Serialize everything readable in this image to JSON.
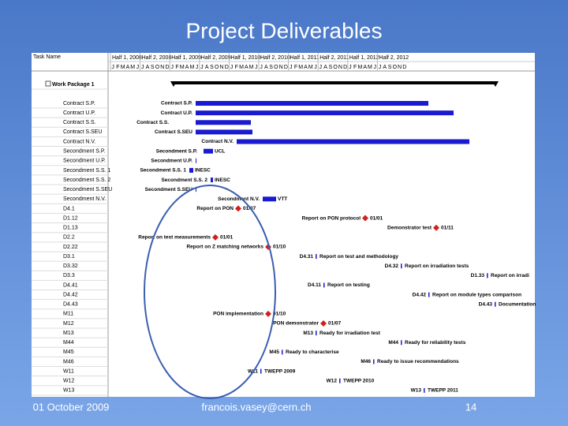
{
  "title": "Project Deliverables",
  "footer": {
    "date": "01 October 2009",
    "email": "francois.vasey@cern.ch",
    "page": "14"
  },
  "table": {
    "header": "Task Name",
    "tasks": [
      "Work Package 1",
      "Contract S.P.",
      "Contract U.P.",
      "Contract S.S.",
      "Contract S.SEU",
      "Contract N.V.",
      "Secondment S.P.",
      "Secondment U.P.",
      "Secondment S.S. 1",
      "Secondment S.S. 2",
      "Secondment S.SEU",
      "Secondment N.V.",
      "D4.1",
      "D1.12",
      "D1.13",
      "D2.2",
      "D2.22",
      "D3.1",
      "D3.32",
      "D3.3",
      "D4.41",
      "D4.42",
      "D4.43",
      "M11",
      "M12",
      "M13",
      "M44",
      "M45",
      "M46",
      "W11",
      "W12",
      "W13"
    ]
  },
  "timeline": {
    "halves": [
      "Half 1, 2008",
      "Half 2, 2008",
      "Half 1, 2009",
      "Half 2, 2009",
      "Half 1, 2010",
      "Half 2, 2010",
      "Half 1, 2011",
      "Half 2, 2011",
      "Half 1, 2012",
      "Half 2, 2012"
    ],
    "months": [
      "J",
      "F",
      "M",
      "A",
      "M",
      "J",
      "J",
      "A",
      "S",
      "O",
      "N",
      "D"
    ]
  },
  "gantt": {
    "bar_notes": [
      "UCL",
      "INESC",
      "INESC",
      "VTT"
    ],
    "milestones": [
      {
        "label": "Report on PON",
        "date": "01/07"
      },
      {
        "label": "Report on PON protocol",
        "date": "01/01"
      },
      {
        "label": "Demonstrator test",
        "date": "01/11"
      },
      {
        "label": "Report on test measurements",
        "date": "01/01"
      },
      {
        "label": "Report on Z matching networks",
        "date": "01/10"
      },
      {
        "code": "D4.31",
        "label": "Report on test and methodology"
      },
      {
        "code": "D4.32",
        "label": "Report on irradiation tests"
      },
      {
        "code": "D1.33",
        "label": "Report on irradi"
      },
      {
        "code": "D4.11",
        "label": "Report on testing"
      },
      {
        "code": "D4.42",
        "label": "Report on module types comparison"
      },
      {
        "code": "D4.43",
        "label": "Documentation"
      },
      {
        "label": "PON implementation",
        "date": "01/10"
      },
      {
        "label": "PON demonstrator",
        "date": "01/07"
      },
      {
        "code": "M13",
        "label": "Ready for irradiation test"
      },
      {
        "code": "M44",
        "label": "Ready for reliability tests"
      },
      {
        "code": "M45",
        "label": "Ready to characterise"
      },
      {
        "code": "M46",
        "label": "Ready to issue recommendations"
      },
      {
        "code": "W11",
        "label": "TWEPP 2009"
      },
      {
        "code": "W12",
        "label": "TWEPP 2010"
      },
      {
        "code": "W13",
        "label": "TWEPP 2011"
      }
    ]
  }
}
